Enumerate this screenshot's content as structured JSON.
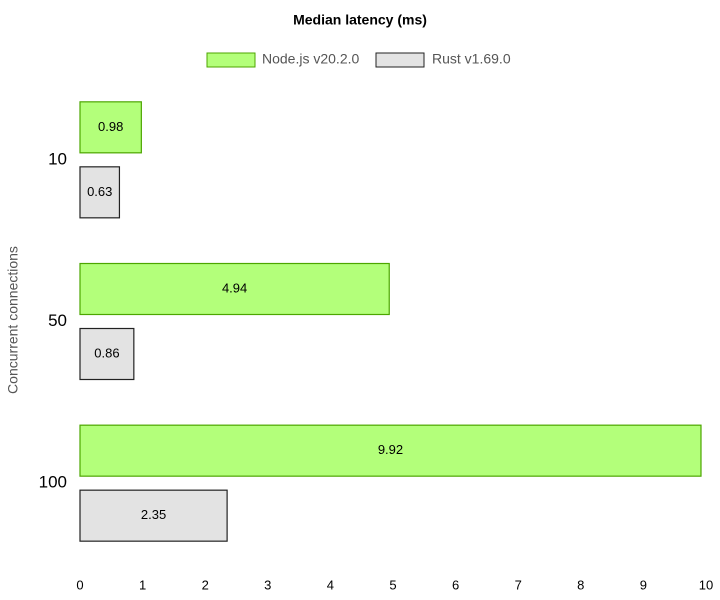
{
  "chart_data": {
    "type": "hbar",
    "title": "Median latency (ms)",
    "y_label": "Concurrent connections",
    "categories": [
      "10",
      "50",
      "100"
    ],
    "series": [
      {
        "name": "Node.js v20.2.0",
        "color": "#b3ff7a",
        "stroke": "#4ca600",
        "values": [
          0.98,
          4.94,
          9.92
        ]
      },
      {
        "name": "Rust v1.69.0",
        "color": "#e3e3e3",
        "stroke": "#222222",
        "values": [
          0.63,
          0.86,
          2.35
        ]
      }
    ],
    "xlim": [
      0,
      10
    ],
    "xticks": [
      0,
      1,
      2,
      3,
      4,
      5,
      6,
      7,
      8,
      9,
      10
    ],
    "legend": "top",
    "grid": false
  }
}
